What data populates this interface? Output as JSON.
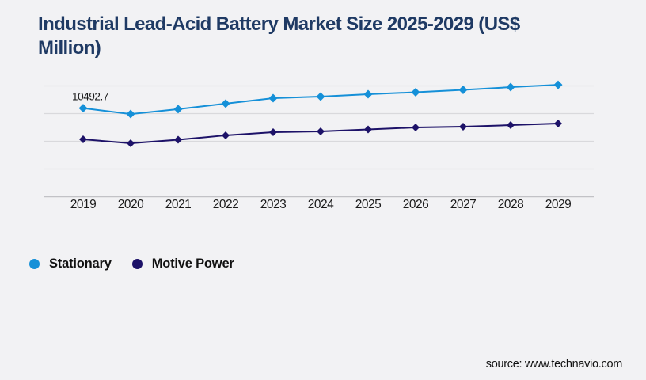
{
  "title": {
    "line1": "Industrial Lead-Acid Battery Market Size 2025-2029 (US$",
    "line2": "Million)"
  },
  "source": {
    "text": "source: www.technavio.com"
  },
  "colors": {
    "background": "#F2F2F4",
    "title_navy": "#1F3A64",
    "stationary_blue": "#1590D8",
    "motive_navy": "#1D1268",
    "gridline_gray": "#D9D9DC",
    "axis_gray": "#C2C2C6",
    "label_black": "#1A1A1A"
  },
  "chart_data": {
    "type": "line",
    "title": "Industrial Lead-Acid Battery Market Size 2025-2029 (US$ Million)",
    "categories": [
      "2019",
      "2020",
      "2021",
      "2022",
      "2023",
      "2024",
      "2025",
      "2026",
      "2027",
      "2028",
      "2029"
    ],
    "series": [
      {
        "name": "Stationary",
        "color": "#1590D8",
        "values": [
          10492.7,
          9960,
          10400,
          10900,
          11390,
          11540,
          11750,
          11930,
          12140,
          12390,
          12600
        ]
      },
      {
        "name": "Motive Power",
        "color": "#1D1268",
        "values": [
          7680,
          7320,
          7640,
          8040,
          8320,
          8390,
          8570,
          8750,
          8820,
          8960,
          9110
        ]
      }
    ],
    "xlabel": "",
    "ylabel": "",
    "ylim": [
      2500,
      12500
    ],
    "gridline_values": [
      5000,
      7500,
      10000,
      12500
    ],
    "grid": "horizontal",
    "y_axis_labels_visible": false,
    "marker": "diamond",
    "legend_position": "bottom-left",
    "annotations": [
      {
        "series": "Stationary",
        "category": "2019",
        "label": "10492.7"
      }
    ]
  }
}
